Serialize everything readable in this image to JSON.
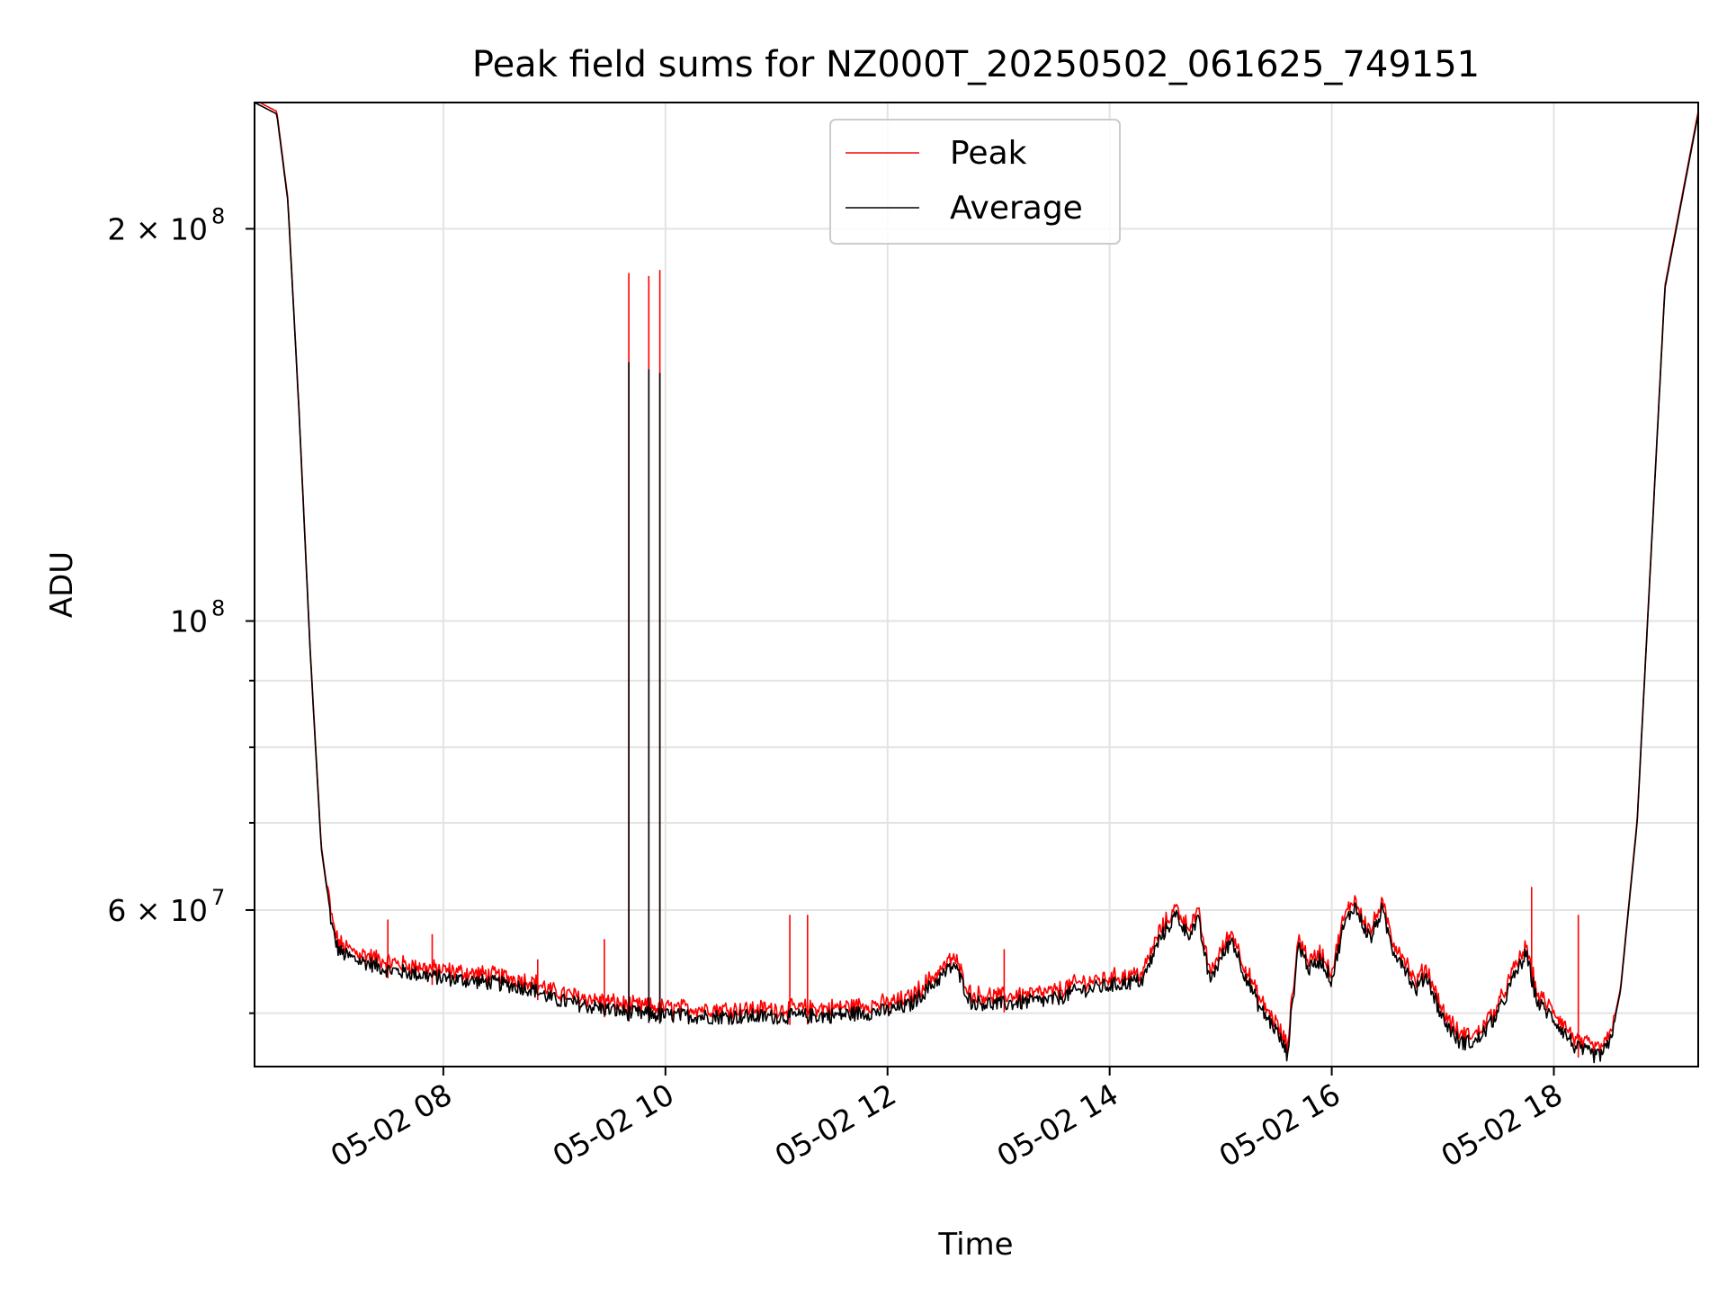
{
  "chart_data": {
    "type": "line",
    "title": "Peak field sums for NZ000T_20250502_061625_749151",
    "xlabel": "Time",
    "ylabel": "ADU",
    "y_scale": "log",
    "xlim_hours": [
      6.3,
      19.3
    ],
    "ylim": [
      45500000,
      250000000
    ],
    "grid": true,
    "legend_position": "top-center",
    "x_tick_values_hours": [
      8,
      10,
      12,
      14,
      16,
      18
    ],
    "x_tick_labels": [
      "05-02 08",
      "05-02 10",
      "05-02 12",
      "05-02 14",
      "05-02 16",
      "05-02 18"
    ],
    "y_tick_values": [
      200000000,
      100000000,
      60000000
    ],
    "y_tick_labels": [
      {
        "base": "2 × 10",
        "exp": "8"
      },
      {
        "base": "10",
        "exp": "8"
      },
      {
        "base": "6 × 10",
        "exp": "7"
      }
    ],
    "y_minor_tick_values": [
      50000000,
      70000000,
      80000000,
      90000000
    ],
    "average_anchor_hours": [
      6.3,
      6.5,
      6.6,
      6.7,
      6.8,
      6.9,
      7.0,
      7.05,
      7.1,
      7.2,
      7.3,
      7.5,
      8.0,
      8.5,
      8.8,
      9.0,
      9.5,
      9.7,
      10.0,
      10.5,
      11.0,
      11.5,
      12.0,
      12.2,
      12.5,
      12.6,
      12.75,
      13.0,
      13.5,
      13.7,
      14.0,
      14.3,
      14.45,
      14.6,
      14.7,
      14.8,
      14.9,
      15.0,
      15.1,
      15.2,
      15.35,
      15.5,
      15.6,
      15.7,
      15.8,
      15.9,
      16.0,
      16.1,
      16.2,
      16.3,
      16.35,
      16.45,
      16.55,
      16.65,
      16.75,
      16.85,
      17.0,
      17.15,
      17.3,
      17.5,
      17.65,
      17.75,
      17.85,
      18.0,
      18.2,
      18.4,
      18.5,
      18.6,
      18.75,
      19.0,
      19.3
    ],
    "average_anchor_values": [
      250000000,
      245000000,
      210000000,
      145000000,
      95000000,
      67000000,
      58000000,
      56000000,
      55500000,
      55000000,
      54700000,
      54000000,
      53200000,
      52700000,
      52200000,
      51200000,
      50300000,
      50000000,
      49800000,
      49700000,
      49700000,
      49800000,
      50200000,
      50700000,
      53500000,
      54500000,
      51000000,
      50800000,
      51200000,
      52000000,
      52500000,
      53000000,
      57000000,
      59500000,
      57500000,
      58800000,
      53000000,
      55000000,
      57000000,
      54000000,
      50500000,
      48500000,
      46500000,
      56500000,
      54000000,
      55000000,
      53000000,
      58000000,
      60500000,
      58000000,
      57000000,
      60000000,
      56000000,
      54500000,
      52000000,
      53500000,
      49500000,
      47500000,
      47500000,
      50000000,
      53500000,
      55500000,
      51000000,
      49500000,
      47000000,
      46300000,
      47200000,
      52000000,
      70000000,
      180000000,
      245000000
    ],
    "peak_spikes": [
      {
        "hour": 7.5,
        "value": 59000000
      },
      {
        "hour": 7.9,
        "value": 57500000
      },
      {
        "hour": 8.85,
        "value": 55000000
      },
      {
        "hour": 9.45,
        "value": 57000000
      },
      {
        "hour": 9.67,
        "value": 185000000
      },
      {
        "hour": 9.85,
        "value": 184000000
      },
      {
        "hour": 9.95,
        "value": 186000000
      },
      {
        "hour": 11.12,
        "value": 59500000
      },
      {
        "hour": 11.28,
        "value": 59500000
      },
      {
        "hour": 13.05,
        "value": 56000000
      },
      {
        "hour": 17.8,
        "value": 62500000
      },
      {
        "hour": 18.22,
        "value": 59500000
      }
    ],
    "average_spikes": [
      {
        "hour": 9.67,
        "value": 158000000
      },
      {
        "hour": 9.85,
        "value": 156000000
      },
      {
        "hour": 9.95,
        "value": 155000000
      }
    ],
    "series": [
      {
        "name": "Peak",
        "color": "#ff0000"
      },
      {
        "name": "Average",
        "color": "#000000"
      }
    ]
  }
}
